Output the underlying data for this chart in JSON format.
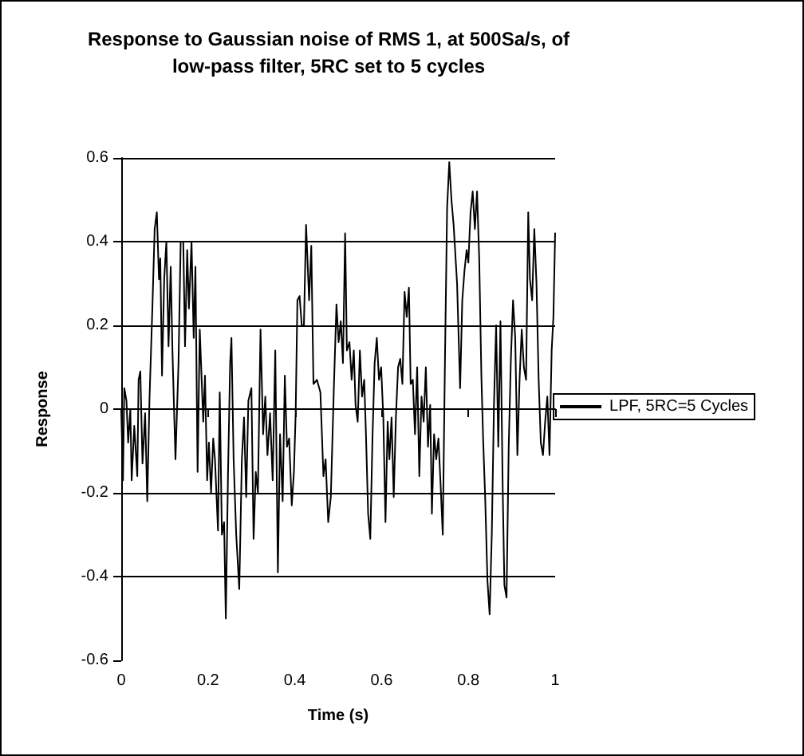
{
  "chart_data": {
    "type": "line",
    "title": "Response to Gaussian noise of RMS 1, at 500Sa/s, of\nlow-pass filter, 5RC set to 5 cycles",
    "xlabel": "Time (s)",
    "ylabel": "Response",
    "series": [
      {
        "name": "LPF, 5RC=5 Cycles",
        "color": "#000000",
        "x": [
          0,
          0.004,
          0.007,
          0.012,
          0.016,
          0.021,
          0.024,
          0.03,
          0.037,
          0.04,
          0.044,
          0.049,
          0.055,
          0.06,
          0.065,
          0.072,
          0.077,
          0.082,
          0.087,
          0.09,
          0.094,
          0.099,
          0.104,
          0.109,
          0.114,
          0.118,
          0.122,
          0.125,
          0.132,
          0.137,
          0.143,
          0.147,
          0.152,
          0.156,
          0.162,
          0.167,
          0.171,
          0.176,
          0.181,
          0.189,
          0.193,
          0.198,
          0.202,
          0.207,
          0.212,
          0.216,
          0.223,
          0.227,
          0.232,
          0.237,
          0.241,
          0.246,
          0.251,
          0.254,
          0.259,
          0.265,
          0.272,
          0.278,
          0.283,
          0.288,
          0.293,
          0.3,
          0.305,
          0.31,
          0.315,
          0.321,
          0.327,
          0.332,
          0.337,
          0.343,
          0.349,
          0.355,
          0.361,
          0.366,
          0.372,
          0.377,
          0.382,
          0.387,
          0.393,
          0.398,
          0.402,
          0.406,
          0.411,
          0.416,
          0.421,
          0.426,
          0.433,
          0.438,
          0.443,
          0.451,
          0.459,
          0.466,
          0.471,
          0.477,
          0.483,
          0.49,
          0.496,
          0.501,
          0.506,
          0.511,
          0.516,
          0.52,
          0.526,
          0.531,
          0.536,
          0.54,
          0.545,
          0.55,
          0.555,
          0.56,
          0.564,
          0.569,
          0.574,
          0.579,
          0.584,
          0.589,
          0.594,
          0.599,
          0.604,
          0.609,
          0.614,
          0.618,
          0.623,
          0.628,
          0.633,
          0.638,
          0.643,
          0.648,
          0.653,
          0.658,
          0.663,
          0.667,
          0.672,
          0.677,
          0.682,
          0.687,
          0.692,
          0.697,
          0.702,
          0.707,
          0.712,
          0.716,
          0.721,
          0.726,
          0.731,
          0.736,
          0.741,
          0.746,
          0.751,
          0.756,
          0.761,
          0.766,
          0.774,
          0.781,
          0.786,
          0.791,
          0.796,
          0.8,
          0.805,
          0.81,
          0.815,
          0.82,
          0.825,
          0.83,
          0.834,
          0.839,
          0.844,
          0.849,
          0.854,
          0.859,
          0.864,
          0.869,
          0.874,
          0.879,
          0.883,
          0.888,
          0.893,
          0.898,
          0.903,
          0.908,
          0.913,
          0.918,
          0.923,
          0.928,
          0.933,
          0.938,
          0.942,
          0.947,
          0.952,
          0.957,
          0.962,
          0.967,
          0.972,
          0.977,
          0.982,
          0.987,
          0.992,
          0.996,
          1
        ],
        "values": [
          0,
          -0.17,
          0.05,
          0.02,
          -0.08,
          0,
          -0.17,
          -0.04,
          -0.16,
          0.07,
          0.09,
          -0.13,
          -0.01,
          -0.22,
          0.02,
          0.25,
          0.43,
          0.47,
          0.31,
          0.36,
          0.08,
          0.31,
          0.4,
          0.15,
          0.34,
          0.14,
          -0.01,
          -0.12,
          0.11,
          0.4,
          0.4,
          0.15,
          0.38,
          0.24,
          0.4,
          0.17,
          0.34,
          -0.15,
          0.19,
          -0.03,
          0.08,
          -0.17,
          -0.08,
          -0.2,
          -0.07,
          -0.12,
          -0.29,
          0.04,
          -0.3,
          -0.27,
          -0.5,
          -0.16,
          0.11,
          0.17,
          -0.12,
          -0.3,
          -0.43,
          -0.12,
          -0.02,
          -0.21,
          0.02,
          0.05,
          -0.31,
          -0.15,
          -0.2,
          0.19,
          -0.06,
          0.03,
          -0.11,
          -0.01,
          -0.17,
          0.14,
          -0.39,
          -0.06,
          -0.22,
          0.08,
          -0.09,
          -0.07,
          -0.23,
          -0.15,
          -0.01,
          0.26,
          0.27,
          0.2,
          0.2,
          0.44,
          0.26,
          0.39,
          0.06,
          0.07,
          0.04,
          -0.16,
          -0.12,
          -0.27,
          -0.21,
          0.05,
          0.25,
          0.16,
          0.21,
          0.11,
          0.42,
          0.14,
          0.16,
          0.07,
          0.14,
          0.01,
          -0.03,
          0.14,
          0.03,
          0.07,
          -0.06,
          -0.25,
          -0.31,
          -0.07,
          0.11,
          0.17,
          0.07,
          0.1,
          -0.02,
          -0.27,
          -0.03,
          -0.12,
          -0.02,
          -0.21,
          -0.02,
          0.1,
          0.12,
          0.06,
          0.28,
          0.22,
          0.29,
          0.06,
          0.07,
          -0.06,
          0.1,
          -0.16,
          0.03,
          -0.03,
          0.1,
          -0.09,
          0.01,
          -0.25,
          -0.06,
          -0.12,
          -0.07,
          -0.18,
          -0.3,
          0.11,
          0.48,
          0.59,
          0.5,
          0.44,
          0.3,
          0.05,
          0.26,
          0.33,
          0.38,
          0.35,
          0.47,
          0.52,
          0.43,
          0.52,
          0.36,
          0.08,
          -0.07,
          -0.22,
          -0.41,
          -0.49,
          -0.3,
          0.01,
          0.2,
          -0.09,
          0.21,
          -0.18,
          -0.42,
          -0.45,
          -0.09,
          0.12,
          0.26,
          0.17,
          -0.11,
          0.07,
          0.19,
          0.1,
          0.07,
          0.47,
          0.31,
          0.26,
          0.43,
          0.3,
          0.07,
          -0.08,
          -0.11,
          -0.03,
          0.03,
          -0.11,
          0.14,
          0.22,
          0.42
        ]
      }
    ],
    "xlim": [
      0,
      1
    ],
    "xticks": [
      0,
      0.2,
      0.4,
      0.6,
      0.8,
      1
    ],
    "ylim": [
      -0.6,
      0.6
    ],
    "yticks": [
      -0.6,
      -0.4,
      -0.2,
      0,
      0.2,
      0.4,
      0.6
    ],
    "grid": "y",
    "legend": "right",
    "marker": "none",
    "line_style": "solid"
  }
}
